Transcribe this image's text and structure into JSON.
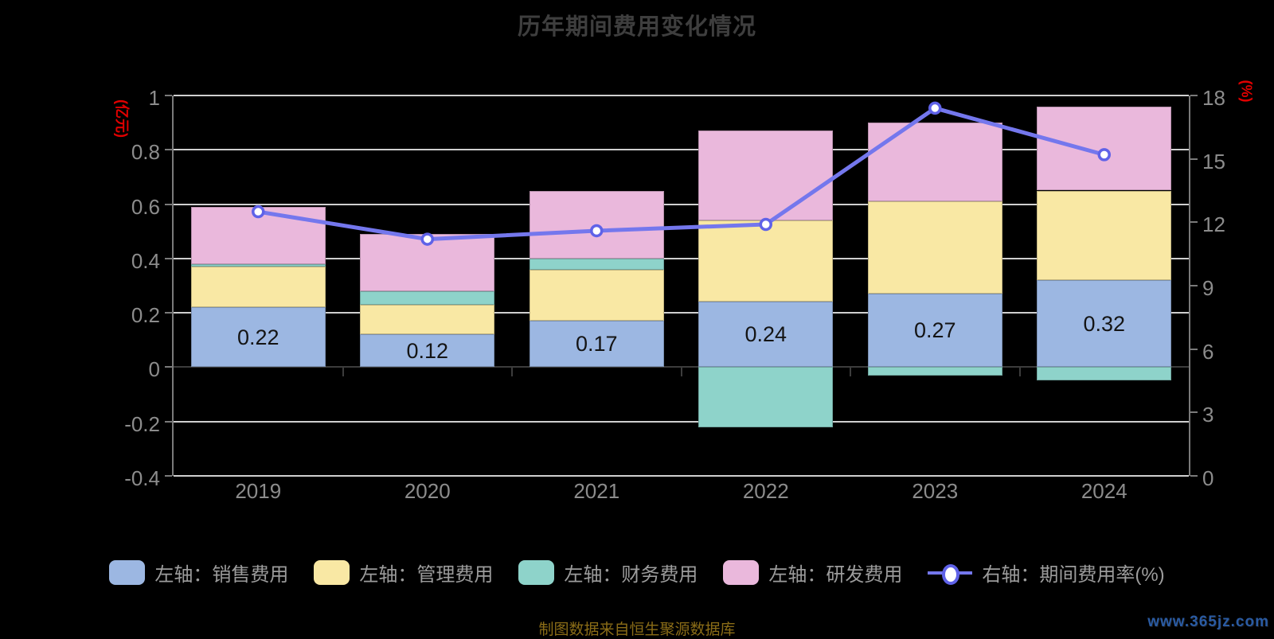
{
  "title": "历年期间费用变化情况",
  "source_note": "制图数据来自恒生聚源数据库",
  "watermark": "www.365jz.com",
  "chart_data": {
    "type": "bar",
    "subtype": "stacked-bar-with-line-combo",
    "categories": [
      "2019",
      "2020",
      "2021",
      "2022",
      "2023",
      "2024"
    ],
    "left_axis": {
      "unit": "(亿元)",
      "ticks": [
        1,
        0.8,
        0.6,
        0.4,
        0.2,
        0,
        -0.2,
        -0.4
      ],
      "min": -0.4,
      "max": 1
    },
    "right_axis": {
      "unit": "(%)",
      "ticks": [
        18,
        15,
        12,
        9,
        6,
        3,
        0
      ],
      "min": 0,
      "max": 18
    },
    "grid": "horizontal-lines-on",
    "legend_position": "bottom",
    "series": [
      {
        "name": "左轴：销售费用",
        "type": "bar",
        "axis": "left",
        "color": "#9cb7e2",
        "values": [
          0.22,
          0.12,
          0.17,
          0.24,
          0.27,
          0.32
        ]
      },
      {
        "name": "左轴：管理费用",
        "type": "bar",
        "axis": "left",
        "color": "#f9e8a4",
        "values": [
          0.15,
          0.11,
          0.19,
          0.3,
          0.34,
          0.33
        ]
      },
      {
        "name": "左轴：财务费用",
        "type": "bar",
        "axis": "left",
        "color": "#8ed3ca",
        "values": [
          0.01,
          0.05,
          0.04,
          -0.22,
          -0.03,
          -0.05
        ]
      },
      {
        "name": "左轴：研发费用",
        "type": "bar",
        "axis": "left",
        "color": "#eab8dc",
        "values": [
          0.21,
          0.21,
          0.25,
          0.33,
          0.29,
          0.31
        ]
      },
      {
        "name": "右轴：期间费用率(%)",
        "type": "line",
        "axis": "right",
        "color": "#7477ed",
        "values": [
          12.5,
          11.2,
          11.6,
          11.9,
          17.4,
          15.2
        ]
      }
    ],
    "bar_value_labels": [
      "0.22",
      "0.12",
      "0.17",
      "0.24",
      "0.27",
      "0.32"
    ]
  },
  "colors": {
    "background": "#000000",
    "title": "#3e3e3e",
    "axis_label": "#8c8c8c",
    "axis_line": "#7a7a7a",
    "gridline": "#cfcfcf",
    "zero_line": "#3c3c3c",
    "unit_label": "#e00000",
    "legend_text": "#9c9c9c",
    "line_marker_ring": "#5f62e8",
    "source_note": "#8a6c17",
    "watermark": "#2a5ba3"
  }
}
